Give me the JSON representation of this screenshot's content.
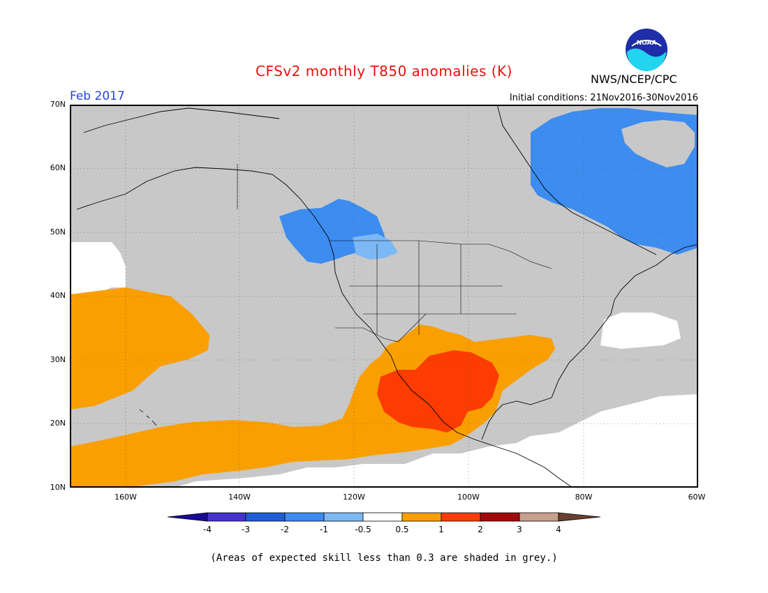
{
  "header": {
    "title": "CFSv2 monthly T850 anomalies (K)",
    "month": "Feb 2017",
    "initial_conditions": "Initial conditions: 21Nov2016-30Nov2016",
    "agency": "NWS/NCEP/CPC",
    "logo_text": "NOAA"
  },
  "axes": {
    "lat_labels": [
      "70N",
      "60N",
      "50N",
      "40N",
      "30N",
      "20N",
      "10N"
    ],
    "lon_labels": [
      "160W",
      "140W",
      "120W",
      "100W",
      "80W",
      "60W"
    ]
  },
  "colorbar": {
    "labels": [
      "-4",
      "-3",
      "-2",
      "-1",
      "-0.5",
      "0.5",
      "1",
      "2",
      "3",
      "4"
    ],
    "colors": {
      "lt_neg4": "#1a0a9a",
      "neg4_neg3": "#4434cc",
      "neg3_neg2": "#1f5fd6",
      "neg2_neg1": "#3d8cf0",
      "neg1_neg05": "#7cb8f5",
      "neg05_05": "#ffffff",
      "p05_1": "#fa9f00",
      "p1_2": "#fc3c00",
      "p2_3": "#a10a0a",
      "p3_4": "#c8a08c",
      "gt4": "#6b4030"
    }
  },
  "legend_colors": {
    "grey_skill": "#c8c8c8",
    "land_ocean_bg": "#c8c8c8"
  },
  "footnote": "(Areas of expected skill less than 0.3 are shaded in grey.)"
}
